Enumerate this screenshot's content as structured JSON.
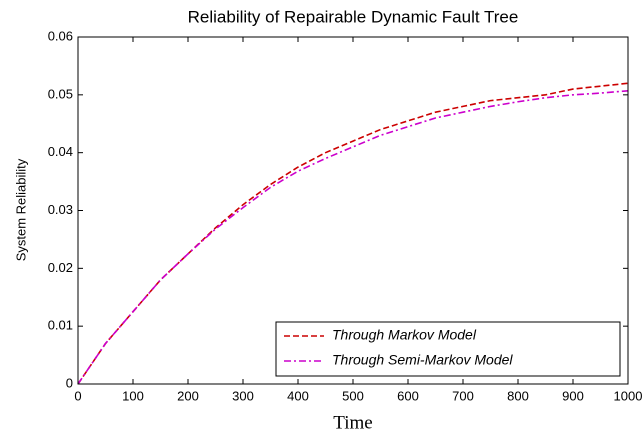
{
  "chart_data": {
    "type": "line",
    "title": "Reliability of Repairable Dynamic Fault Tree",
    "x_label": "Time",
    "y_label": "System Reliability",
    "x": [
      0,
      50,
      100,
      150,
      200,
      250,
      300,
      350,
      400,
      450,
      500,
      550,
      600,
      650,
      700,
      750,
      800,
      850,
      900,
      950,
      1000
    ],
    "series": [
      {
        "name": "Through Markov Model",
        "color": "#cc0000",
        "dash": "dashed",
        "values": [
          0,
          0.007,
          0.0125,
          0.018,
          0.0225,
          0.027,
          0.031,
          0.0345,
          0.0375,
          0.04,
          0.042,
          0.044,
          0.0455,
          0.047,
          0.048,
          0.049,
          0.0495,
          0.05,
          0.051,
          0.0515,
          0.052
        ]
      },
      {
        "name": "Through Semi-Markov Model",
        "color": "#cc00cc",
        "dash": "dashdot",
        "values": [
          0,
          0.007,
          0.0125,
          0.018,
          0.0225,
          0.0268,
          0.0305,
          0.034,
          0.0368,
          0.039,
          0.041,
          0.043,
          0.0445,
          0.046,
          0.047,
          0.048,
          0.0488,
          0.0495,
          0.05,
          0.0503,
          0.0507
        ]
      }
    ],
    "xlim": [
      0,
      1000
    ],
    "xticks": [
      0,
      100,
      200,
      300,
      400,
      500,
      600,
      700,
      800,
      900,
      1000
    ],
    "ylim": [
      0,
      0.06
    ],
    "yticks": [
      0,
      0.01,
      0.02,
      0.03,
      0.04,
      0.05,
      0.06
    ],
    "grid": false,
    "legend": "lower right"
  }
}
